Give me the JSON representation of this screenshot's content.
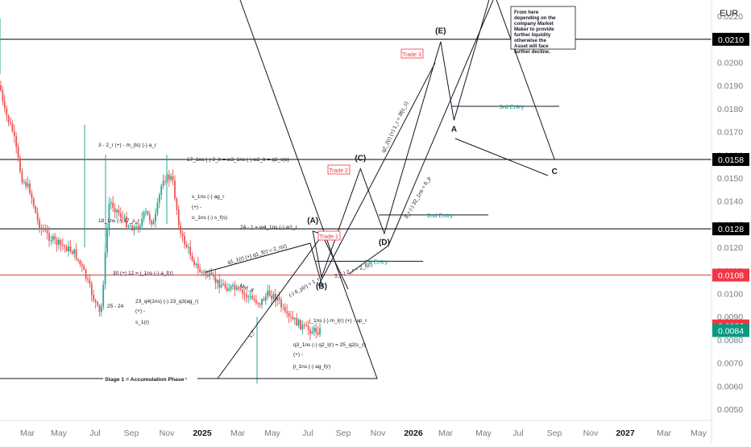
{
  "chart_data": {
    "type": "candlestick",
    "symbol_currency": "EUR",
    "title": "",
    "xlabel": "",
    "ylabel": "",
    "ylim": [
      0.0044,
      0.0232
    ],
    "grid": false,
    "x_ticks": [
      "Mar",
      "May",
      "Jul",
      "Sep",
      "Nov",
      "2025",
      "Mar",
      "May",
      "Jul",
      "Sep",
      "Nov",
      "2026",
      "Mar",
      "May",
      "Jul",
      "Sep",
      "Nov",
      "2027",
      "Mar",
      "May"
    ],
    "y_ticks": [
      "0.0050",
      "0.0060",
      "0.0070",
      "0.0080",
      "0.0090",
      "0.0100",
      "0.0110",
      "0.0120",
      "0.0130",
      "0.0140",
      "0.0150",
      "0.0160",
      "0.0170",
      "0.0180",
      "0.0190",
      "0.0200",
      "0.0210",
      "0.0220"
    ],
    "horizontal_levels": [
      {
        "price": 0.021,
        "label": "0.0210",
        "color": "#000000"
      },
      {
        "price": 0.0158,
        "label": "0.0158",
        "color": "#000000"
      },
      {
        "price": 0.0128,
        "label": "0.0128",
        "color": "#000000"
      },
      {
        "price": 0.0108,
        "label": "0.0108",
        "color": "#f23645"
      }
    ],
    "price_badges": [
      {
        "price": 0.0086,
        "label": "0.0086",
        "color": "#f23645"
      },
      {
        "price": 0.0084,
        "label": "0.0084",
        "color": "#089981"
      }
    ],
    "price_series_approx": [
      {
        "date": "2024-01-05",
        "price": 0.0205
      },
      {
        "date": "2024-01-20",
        "price": 0.018
      },
      {
        "date": "2024-02-05",
        "price": 0.017
      },
      {
        "date": "2024-02-20",
        "price": 0.015
      },
      {
        "date": "2024-03-05",
        "price": 0.0145
      },
      {
        "date": "2024-03-20",
        "price": 0.013
      },
      {
        "date": "2024-04-05",
        "price": 0.0125
      },
      {
        "date": "2024-04-20",
        "price": 0.0122
      },
      {
        "date": "2024-05-05",
        "price": 0.012
      },
      {
        "date": "2024-05-20",
        "price": 0.0118
      },
      {
        "date": "2024-06-05",
        "price": 0.011
      },
      {
        "date": "2024-06-20",
        "price": 0.01
      },
      {
        "date": "2024-07-05",
        "price": 0.009
      },
      {
        "date": "2024-07-20",
        "price": 0.014
      },
      {
        "date": "2024-08-05",
        "price": 0.0135
      },
      {
        "date": "2024-08-20",
        "price": 0.013
      },
      {
        "date": "2024-09-05",
        "price": 0.0128
      },
      {
        "date": "2024-09-20",
        "price": 0.0135
      },
      {
        "date": "2024-10-05",
        "price": 0.013
      },
      {
        "date": "2024-10-20",
        "price": 0.015
      },
      {
        "date": "2024-11-05",
        "price": 0.015
      },
      {
        "date": "2024-11-20",
        "price": 0.0125
      },
      {
        "date": "2024-12-05",
        "price": 0.0118
      },
      {
        "date": "2024-12-20",
        "price": 0.011
      },
      {
        "date": "2025-01-05",
        "price": 0.0108
      },
      {
        "date": "2025-01-20",
        "price": 0.0105
      },
      {
        "date": "2025-02-05",
        "price": 0.0103
      },
      {
        "date": "2025-02-20",
        "price": 0.0102
      },
      {
        "date": "2025-03-05",
        "price": 0.01
      },
      {
        "date": "2025-03-20",
        "price": 0.0098
      },
      {
        "date": "2025-04-05",
        "price": 0.0096
      },
      {
        "date": "2025-04-20",
        "price": 0.01
      },
      {
        "date": "2025-05-05",
        "price": 0.0098
      },
      {
        "date": "2025-05-20",
        "price": 0.009
      },
      {
        "date": "2025-06-05",
        "price": 0.0088
      },
      {
        "date": "2025-06-20",
        "price": 0.0085
      },
      {
        "date": "2025-07-05",
        "price": 0.0084
      },
      {
        "date": "2025-07-20",
        "price": 0.0084
      },
      {
        "date": "2025-08-05",
        "price": 0.0084
      }
    ],
    "projection_path": [
      {
        "date": "2025-08-10",
        "price": 0.0124,
        "label": ""
      },
      {
        "date": "2025-07-05",
        "price": 0.0127,
        "label": "(A)"
      },
      {
        "date": "2025-07-20",
        "price": 0.0107,
        "label": "(B)"
      },
      {
        "date": "2025-09-25",
        "price": 0.0154,
        "label": "(C)"
      },
      {
        "date": "2025-11-05",
        "price": 0.0126,
        "label": "(D)"
      },
      {
        "date": "2026-02-10",
        "price": 0.0209,
        "label": "(E)"
      },
      {
        "date": "2026-03-05",
        "price": 0.0175,
        "label": "A"
      },
      {
        "date": "2026-05-10",
        "price": 0.0232,
        "label": ""
      },
      {
        "date": "2026-08-25",
        "price": 0.0158,
        "label": "C"
      }
    ],
    "entries": [
      {
        "label": "1st Entry",
        "price": 0.0114
      },
      {
        "label": "2nd Entry",
        "price": 0.0134
      },
      {
        "label": "3rd Entry",
        "price": 0.0181
      }
    ],
    "trade_labels": [
      "Trade 1",
      "Trade 2",
      "Trade 3"
    ],
    "annotations": [
      "3 - 2_r (+) - m_(ls) (-) a_r",
      "17_1ns (-) 9_lr = w3_1ns (-) w2_lr = q2_s(c)",
      "s_1ns (-) ag_r",
      "(+) -",
      "o_1ns (-) s_f(s)",
      "18_1ns (-) 17_s_r",
      "24 - 1 = w4_1ns (-) w1_r",
      "30 (+) 12 = j_1ns (-) a_f(r)",
      "25 - 24",
      "23_q4(1ns) (-) 23_q3(ag_r)",
      "(+) -",
      "s_1(r)",
      "Mid_d",
      "j_1ns (-) m_l(r) (+) - ap_r",
      "q3_1ns (-) q2_l(r) = 25_q2(s_c)",
      "(+) -",
      "jl_1ns (-) ag_f(r)",
      "Stage 1 = Accumulation Phase",
      "q1_1(r) (+) q1_f(r) = 2_r(c)",
      "(-) 6_p(r) = 1_r",
      "2_(-) 2_r = 2_f(c)",
      "q2_2(r) (+) 1_r = 3f(c_c)",
      "3_r (-) 32_1ns = 6_p",
      "1_r"
    ],
    "note_box": "From here depending on the company Market Maker to provide further liquidity otherwise the Asset will face further decline."
  }
}
